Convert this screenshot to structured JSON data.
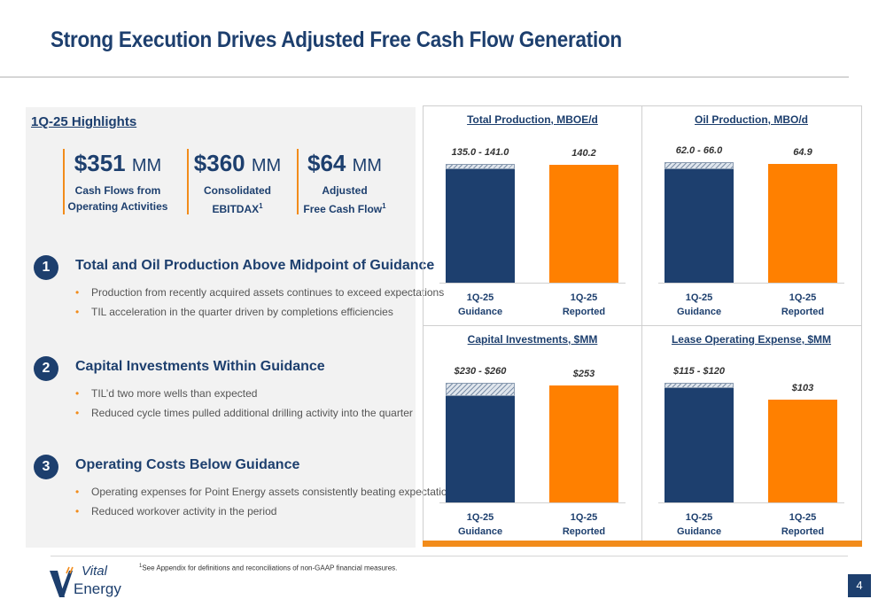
{
  "slide": {
    "title": "Strong Execution Drives Adjusted Free Cash Flow Generation",
    "page_number": "4",
    "footnote": "See Appendix for definitions and reconciliations of non-GAAP financial measures.",
    "footnote_marker": "1",
    "logo": {
      "line1": "Vital",
      "line2": "Energy"
    },
    "colors": {
      "navy": "#1d3f6e",
      "orange": "#ff8000",
      "accent_orange": "#f28c1b"
    }
  },
  "highlights": {
    "title": "1Q-25 Highlights",
    "metrics": [
      {
        "value": "$351",
        "unit": "MM",
        "label_line1": "Cash Flows from",
        "label_line2": "Operating Activities",
        "sup": ""
      },
      {
        "value": "$360",
        "unit": "MM",
        "label_line1": "Consolidated",
        "label_line2": "EBITDAX",
        "sup": "1"
      },
      {
        "value": "$64",
        "unit": "MM",
        "label_line1": "Adjusted",
        "label_line2": "Free Cash Flow",
        "sup": "1"
      }
    ],
    "sections": [
      {
        "number": "1",
        "heading": "Total and Oil Production Above Midpoint of Guidance",
        "bullets": [
          "Production from recently acquired assets continues to exceed expectations",
          "TIL acceleration in the quarter driven by completions efficiencies"
        ]
      },
      {
        "number": "2",
        "heading": "Capital Investments Within Guidance",
        "bullets": [
          "TIL’d two more wells than expected",
          "Reduced cycle times pulled additional drilling activity into the quarter"
        ]
      },
      {
        "number": "3",
        "heading": "Operating Costs Below Guidance",
        "bullets": [
          "Operating expenses for Point Energy assets consistently beating expectations",
          "Reduced workover activity in the period"
        ]
      }
    ]
  },
  "chart_data": [
    {
      "type": "bar",
      "title": "Total Production, MBOE/d",
      "categories": [
        [
          "1Q-25",
          "Guidance"
        ],
        [
          "1Q-25",
          "Reported"
        ]
      ],
      "guidance_low": 135.0,
      "guidance_high": 141.0,
      "reported": 140.2,
      "guidance_label": "135.0 - 141.0",
      "reported_label": "140.2",
      "ylim": [
        0,
        145
      ]
    },
    {
      "type": "bar",
      "title": "Oil Production, MBO/d",
      "categories": [
        [
          "1Q-25",
          "Guidance"
        ],
        [
          "1Q-25",
          "Reported"
        ]
      ],
      "guidance_low": 62.0,
      "guidance_high": 66.0,
      "reported": 64.9,
      "guidance_label": "62.0 - 66.0",
      "reported_label": "64.9",
      "ylim": [
        0,
        67
      ]
    },
    {
      "type": "bar",
      "title": "Capital Investments, $MM",
      "categories": [
        [
          "1Q-25",
          "Guidance"
        ],
        [
          "1Q-25",
          "Reported"
        ]
      ],
      "guidance_low": 230,
      "guidance_high": 260,
      "reported": 253,
      "guidance_label": "$230 - $260",
      "reported_label": "$253",
      "ylim": [
        0,
        265
      ]
    },
    {
      "type": "bar",
      "title": "Lease Operating Expense, $MM",
      "categories": [
        [
          "1Q-25",
          "Guidance"
        ],
        [
          "1Q-25",
          "Reported"
        ]
      ],
      "guidance_low": 115,
      "guidance_high": 120,
      "reported": 103,
      "guidance_label": "$115 - $120",
      "reported_label": "$103",
      "ylim": [
        0,
        123
      ]
    }
  ]
}
